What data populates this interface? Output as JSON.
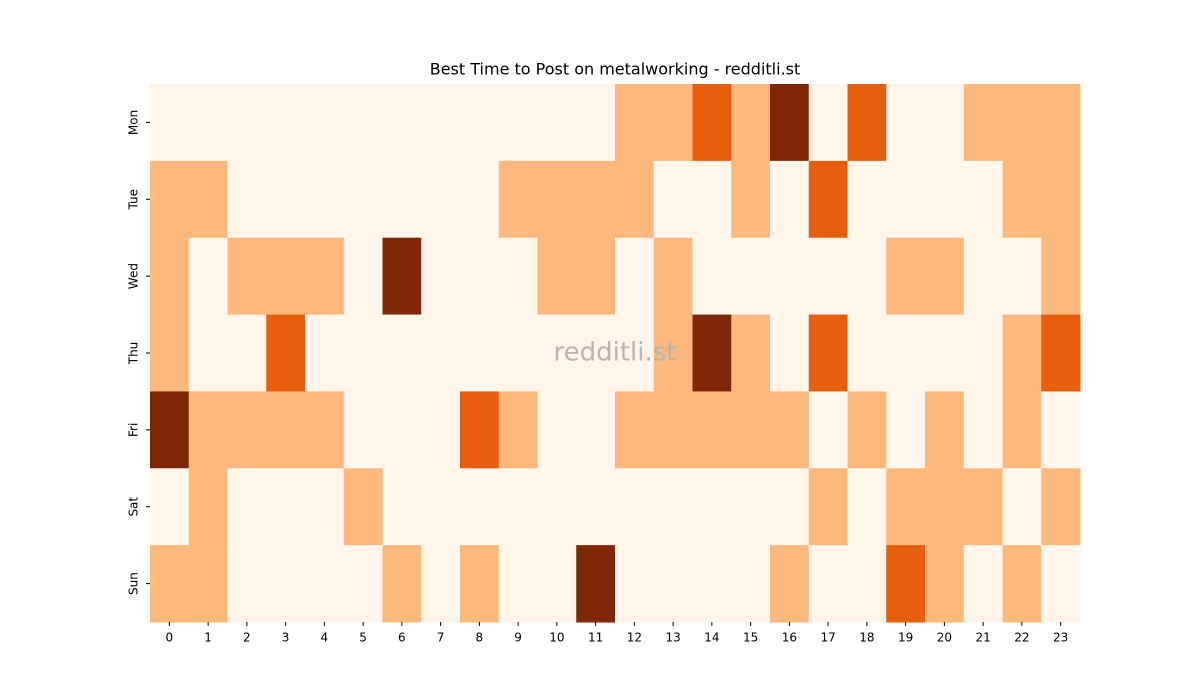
{
  "chart_data": {
    "type": "heatmap",
    "title": "Best Time to Post on metalworking - redditli.st",
    "watermark": "redditli.st",
    "x": [
      0,
      1,
      2,
      3,
      4,
      5,
      6,
      7,
      8,
      9,
      10,
      11,
      12,
      13,
      14,
      15,
      16,
      17,
      18,
      19,
      20,
      21,
      22,
      23
    ],
    "y": [
      "Mon",
      "Tue",
      "Wed",
      "Thu",
      "Fri",
      "Sat",
      "Sun"
    ],
    "colorscale": [
      "#fff5eb",
      "#fdb97d",
      "#e95e0d",
      "#7f2704"
    ],
    "values": [
      [
        0,
        0,
        0,
        0,
        0,
        0,
        0,
        0,
        0,
        0,
        0,
        0,
        1,
        1,
        2,
        1,
        3,
        0,
        2,
        0,
        0,
        1,
        1,
        1
      ],
      [
        1,
        1,
        0,
        0,
        0,
        0,
        0,
        0,
        0,
        1,
        1,
        1,
        1,
        0,
        0,
        1,
        0,
        2,
        0,
        0,
        0,
        0,
        1,
        1
      ],
      [
        1,
        0,
        1,
        1,
        1,
        0,
        3,
        0,
        0,
        0,
        1,
        1,
        0,
        1,
        0,
        0,
        0,
        0,
        0,
        1,
        1,
        0,
        0,
        1
      ],
      [
        1,
        0,
        0,
        2,
        0,
        0,
        0,
        0,
        0,
        0,
        0,
        0,
        0,
        1,
        3,
        1,
        0,
        2,
        0,
        0,
        0,
        0,
        1,
        2
      ],
      [
        3,
        1,
        1,
        1,
        1,
        0,
        0,
        0,
        2,
        1,
        0,
        0,
        1,
        1,
        1,
        1,
        1,
        0,
        1,
        0,
        1,
        0,
        1,
        0
      ],
      [
        0,
        1,
        0,
        0,
        0,
        1,
        0,
        0,
        0,
        0,
        0,
        0,
        0,
        0,
        0,
        0,
        0,
        1,
        0,
        1,
        1,
        1,
        0,
        1
      ],
      [
        1,
        1,
        0,
        0,
        0,
        0,
        1,
        0,
        1,
        0,
        0,
        3,
        0,
        0,
        0,
        0,
        1,
        0,
        0,
        2,
        1,
        0,
        1,
        0
      ]
    ]
  }
}
